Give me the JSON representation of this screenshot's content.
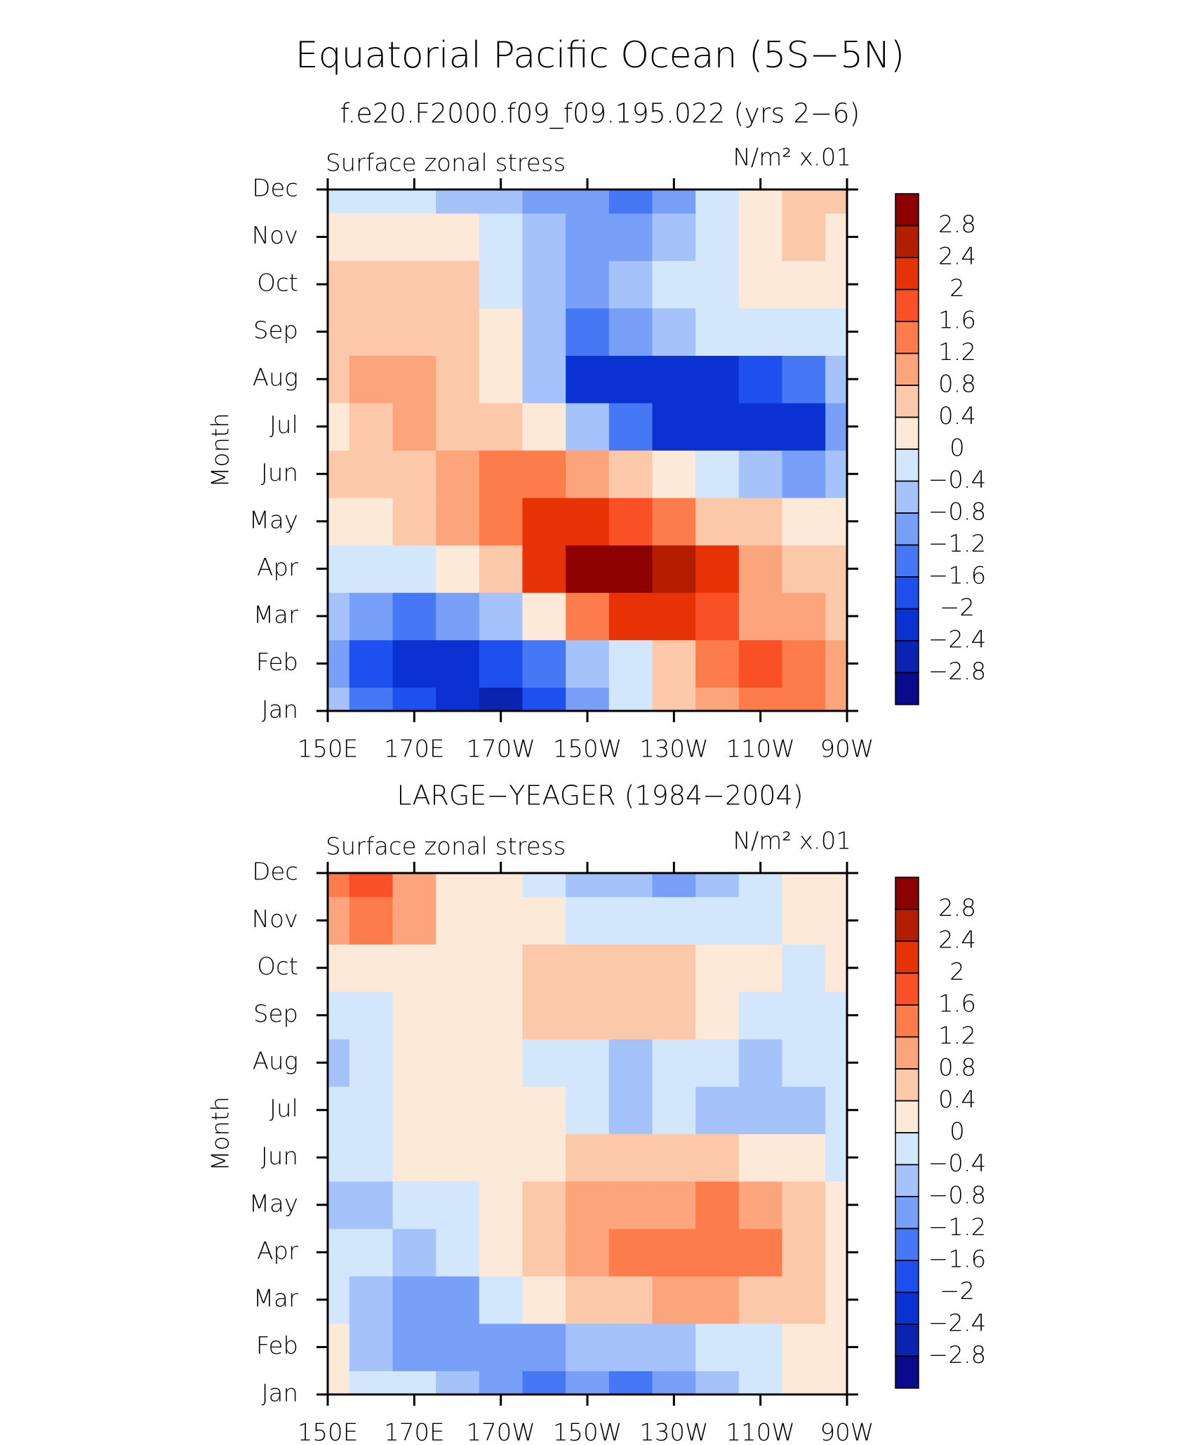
{
  "title": "Equatorial Pacific Ocean (5S−5N)",
  "chart_data": [
    {
      "type": "contour",
      "title": "f.e20.F2000.f09_f09.195.022 (yrs 2−6)",
      "left_label": "Surface zonal stress",
      "right_label": "N/m² x.01",
      "ylabel": "Month",
      "x": [
        150,
        160,
        170,
        180,
        190,
        200,
        210,
        220,
        230,
        240,
        250,
        260,
        270
      ],
      "categories": [
        "Jan",
        "Feb",
        "Mar",
        "Apr",
        "May",
        "Jun",
        "Jul",
        "Aug",
        "Sep",
        "Oct",
        "Nov",
        "Dec"
      ],
      "xlim": [
        150,
        270
      ],
      "xticks": [
        {
          "value": 150,
          "label": "150E"
        },
        {
          "value": 170,
          "label": "170E"
        },
        {
          "value": 190,
          "label": "170W"
        },
        {
          "value": 210,
          "label": "150W"
        },
        {
          "value": 230,
          "label": "130W"
        },
        {
          "value": 250,
          "label": "110W"
        },
        {
          "value": 270,
          "label": "90W"
        }
      ],
      "values": [
        [
          -0.6,
          -1.6,
          -2.0,
          -2.4,
          -2.6,
          -1.8,
          -1.0,
          -0.2,
          0.6,
          1.0,
          1.4,
          1.2,
          0.8
        ],
        [
          -1.0,
          -1.8,
          -2.2,
          -2.2,
          -2.0,
          -1.6,
          -0.8,
          -0.2,
          0.6,
          1.4,
          1.6,
          1.2,
          0.8
        ],
        [
          -0.6,
          -1.2,
          -1.4,
          -1.2,
          -0.6,
          0.0,
          1.4,
          2.0,
          2.2,
          1.8,
          1.0,
          0.8,
          0.6
        ],
        [
          -0.2,
          -0.4,
          -0.4,
          0.0,
          0.6,
          2.0,
          2.8,
          3.0,
          2.6,
          2.0,
          0.8,
          0.6,
          0.6
        ],
        [
          0.2,
          0.2,
          0.4,
          0.8,
          1.4,
          2.0,
          2.2,
          1.8,
          1.2,
          0.6,
          0.4,
          0.2,
          0.0
        ],
        [
          0.4,
          0.4,
          0.6,
          0.8,
          1.2,
          1.4,
          1.0,
          0.4,
          0.0,
          -0.4,
          -0.8,
          -1.0,
          -0.8
        ],
        [
          0.2,
          0.6,
          0.8,
          0.6,
          0.6,
          0.2,
          -0.6,
          -1.6,
          -2.2,
          -2.4,
          -2.4,
          -2.2,
          -1.0
        ],
        [
          0.4,
          1.0,
          1.0,
          0.6,
          0.2,
          -0.8,
          -2.2,
          -2.4,
          -2.4,
          -2.2,
          -1.8,
          -1.4,
          -0.8
        ],
        [
          0.4,
          0.6,
          0.6,
          0.4,
          0.0,
          -0.8,
          -1.6,
          -1.2,
          -0.8,
          -0.4,
          -0.4,
          -0.4,
          -0.4
        ],
        [
          0.6,
          0.6,
          0.6,
          0.4,
          -0.4,
          -0.8,
          -1.2,
          -0.8,
          -0.4,
          -0.2,
          0.0,
          0.2,
          0.2
        ],
        [
          0.2,
          0.2,
          0.2,
          0.0,
          -0.4,
          -0.8,
          -1.0,
          -1.0,
          -0.6,
          -0.2,
          0.2,
          0.4,
          0.2
        ],
        [
          -0.2,
          -0.4,
          -0.4,
          -0.6,
          -0.8,
          -1.2,
          -1.2,
          -1.4,
          -1.0,
          -0.4,
          0.2,
          0.4,
          0.4
        ]
      ],
      "levels": [
        {
          "value": -2.8,
          "label": "−2.8"
        },
        {
          "value": -2.4,
          "label": "−2.4"
        },
        {
          "value": -2,
          "label": "−2"
        },
        {
          "value": -1.6,
          "label": "−1.6"
        },
        {
          "value": -1.2,
          "label": "−1.2"
        },
        {
          "value": -0.8,
          "label": "−0.8"
        },
        {
          "value": -0.4,
          "label": "−0.4"
        },
        0,
        0.4,
        0.8,
        1.2,
        1.6,
        2,
        2.4,
        2.8
      ],
      "colors": [
        "#0a0a8c",
        "#0a23b0",
        "#0a32d2",
        "#1e50f0",
        "#4678f5",
        "#78a0f8",
        "#a5c3fa",
        "#d2e6fc",
        "#fde9d7",
        "#fcc8aa",
        "#fca57d",
        "#fc7d4b",
        "#fa5028",
        "#e63205",
        "#b41e00",
        "#8c0000"
      ]
    },
    {
      "type": "contour",
      "title": "LARGE−YEAGER (1984−2004)",
      "left_label": "Surface zonal stress",
      "right_label": "N/m² x.01",
      "ylabel": "Month",
      "x": [
        150,
        160,
        170,
        180,
        190,
        200,
        210,
        220,
        230,
        240,
        250,
        260,
        270
      ],
      "categories": [
        "Jan",
        "Feb",
        "Mar",
        "Apr",
        "May",
        "Jun",
        "Jul",
        "Aug",
        "Sep",
        "Oct",
        "Nov",
        "Dec"
      ],
      "xlim": [
        150,
        270
      ],
      "xticks": [
        {
          "value": 150,
          "label": "150E"
        },
        {
          "value": 170,
          "label": "170E"
        },
        {
          "value": 190,
          "label": "170W"
        },
        {
          "value": 210,
          "label": "150W"
        },
        {
          "value": 230,
          "label": "130W"
        },
        {
          "value": 250,
          "label": "110W"
        },
        {
          "value": 270,
          "label": "90W"
        }
      ],
      "values": [
        [
          0.0,
          -0.4,
          -0.4,
          -0.8,
          -1.2,
          -1.6,
          -1.2,
          -1.6,
          -1.2,
          -0.8,
          -0.4,
          0.0,
          0.2
        ],
        [
          0.0,
          -0.8,
          -1.2,
          -1.2,
          -1.0,
          -1.2,
          -0.8,
          -0.8,
          -0.6,
          -0.4,
          -0.2,
          0.0,
          0.2
        ],
        [
          -0.2,
          -0.8,
          -1.2,
          -1.0,
          -0.4,
          0.0,
          0.4,
          0.6,
          0.8,
          0.8,
          0.6,
          0.4,
          0.2
        ],
        [
          -0.4,
          -0.4,
          -0.8,
          -0.4,
          0.0,
          0.4,
          0.8,
          1.2,
          1.4,
          1.4,
          1.2,
          0.4,
          0.2
        ],
        [
          -0.6,
          -0.6,
          -0.4,
          -0.2,
          0.2,
          0.6,
          0.8,
          1.0,
          1.0,
          1.2,
          1.0,
          0.4,
          0.0
        ],
        [
          -0.4,
          -0.2,
          0.0,
          0.2,
          0.2,
          0.2,
          0.4,
          0.4,
          0.4,
          0.4,
          0.2,
          0.0,
          -0.2
        ],
        [
          -0.4,
          -0.2,
          0.0,
          0.2,
          0.2,
          0.0,
          -0.4,
          -0.6,
          -0.4,
          -0.6,
          -0.8,
          -0.6,
          -0.2
        ],
        [
          -0.8,
          -0.4,
          0.0,
          0.2,
          0.0,
          -0.4,
          -0.2,
          -0.6,
          -0.4,
          -0.2,
          -0.8,
          -0.4,
          -0.2
        ],
        [
          -0.4,
          -0.2,
          0.0,
          0.2,
          0.2,
          0.4,
          0.6,
          0.6,
          0.6,
          0.2,
          -0.2,
          -0.4,
          -0.2
        ],
        [
          0.2,
          0.2,
          0.0,
          0.2,
          0.2,
          0.4,
          0.6,
          0.4,
          0.4,
          0.2,
          0.0,
          -0.2,
          0.2
        ],
        [
          0.8,
          1.2,
          0.8,
          0.2,
          0.0,
          0.0,
          -0.2,
          -0.4,
          -0.4,
          -0.4,
          -0.2,
          0.0,
          0.0
        ],
        [
          1.2,
          1.6,
          0.8,
          0.2,
          0.0,
          -0.4,
          -0.6,
          -0.8,
          -1.2,
          -0.6,
          -0.2,
          0.0,
          0.0
        ]
      ],
      "levels": [
        {
          "value": -2.8,
          "label": "−2.8"
        },
        {
          "value": -2.4,
          "label": "−2.4"
        },
        {
          "value": -2,
          "label": "−2"
        },
        {
          "value": -1.6,
          "label": "−1.6"
        },
        {
          "value": -1.2,
          "label": "−1.2"
        },
        {
          "value": -0.8,
          "label": "−0.8"
        },
        {
          "value": -0.4,
          "label": "−0.4"
        },
        0,
        0.4,
        0.8,
        1.2,
        1.6,
        2,
        2.4,
        2.8
      ],
      "colors": [
        "#0a0a8c",
        "#0a23b0",
        "#0a32d2",
        "#1e50f0",
        "#4678f5",
        "#78a0f8",
        "#a5c3fa",
        "#d2e6fc",
        "#fde9d7",
        "#fcc8aa",
        "#fca57d",
        "#fc7d4b",
        "#fa5028",
        "#e63205",
        "#b41e00",
        "#8c0000"
      ]
    }
  ]
}
